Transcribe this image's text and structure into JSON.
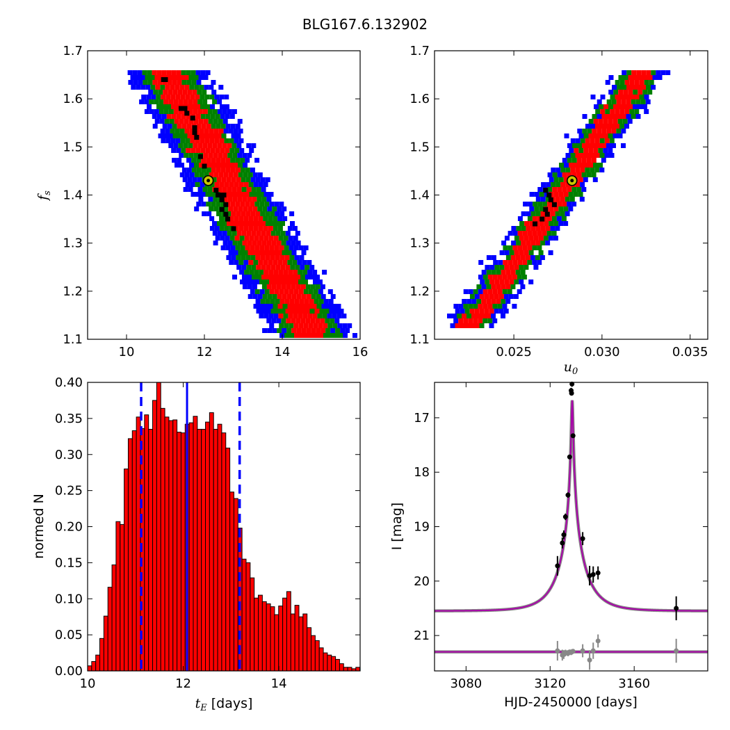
{
  "figure_title": "BLG167.6.132902",
  "chart_data": [
    {
      "type": "heatmap",
      "id": "fs-vs-tE",
      "xlabel": "",
      "ylabel_base": "f",
      "ylabel_sub": "s",
      "xlim": [
        9,
        16
      ],
      "ylim": [
        1.1,
        1.7
      ],
      "xticks": [
        "10",
        "12",
        "14",
        "16"
      ],
      "yticks": [
        "1.1",
        "1.2",
        "1.3",
        "1.4",
        "1.5",
        "1.6",
        "1.7"
      ],
      "grid": false,
      "confidence_colors": [
        "#0000ff",
        "#008000",
        "#ff0000",
        "#000000"
      ],
      "band": {
        "top": {
          "x": 10.95,
          "y": 1.66
        },
        "bottom": {
          "x": 14.75,
          "y": 1.11
        },
        "half_widths_x": [
          1.05,
          0.72,
          0.42
        ]
      },
      "best_fit": {
        "x": 12.1,
        "y": 1.43
      },
      "black_cells": [
        [
          10.95,
          1.64
        ],
        [
          11.0,
          1.64
        ],
        [
          11.4,
          1.58
        ],
        [
          11.5,
          1.58
        ],
        [
          11.55,
          1.57
        ],
        [
          11.7,
          1.56
        ],
        [
          11.75,
          1.54
        ],
        [
          11.75,
          1.53
        ],
        [
          11.8,
          1.52
        ],
        [
          11.9,
          1.48
        ],
        [
          12.0,
          1.46
        ],
        [
          12.3,
          1.41
        ],
        [
          12.35,
          1.4
        ],
        [
          12.4,
          1.4
        ],
        [
          12.45,
          1.39
        ],
        [
          12.5,
          1.4
        ],
        [
          12.55,
          1.38
        ],
        [
          12.45,
          1.37
        ],
        [
          12.55,
          1.36
        ],
        [
          12.6,
          1.35
        ],
        [
          12.75,
          1.33
        ]
      ]
    },
    {
      "type": "heatmap",
      "id": "fs-vs-u0",
      "xlabel_base": "u",
      "xlabel_sub": "0",
      "ylabel": "",
      "xlim": [
        0.0205,
        0.036
      ],
      "ylim": [
        1.1,
        1.7
      ],
      "xticks": [
        "0.025",
        "0.030",
        "0.035"
      ],
      "yticks": [
        "1.1",
        "1.2",
        "1.3",
        "1.4",
        "1.5",
        "1.6",
        "1.7"
      ],
      "grid": false,
      "confidence_colors": [
        "#0000ff",
        "#008000",
        "#ff0000",
        "#000000"
      ],
      "band": {
        "top": {
          "x": 0.0322,
          "y": 1.66
        },
        "bottom": {
          "x": 0.0224,
          "y": 1.13
        },
        "half_widths_x": [
          0.00135,
          0.00095,
          0.0006
        ]
      },
      "best_fit": {
        "x": 0.0283,
        "y": 1.43
      },
      "black_cells": [
        [
          0.0268,
          1.41
        ],
        [
          0.027,
          1.4
        ],
        [
          0.0271,
          1.39
        ],
        [
          0.0273,
          1.38
        ],
        [
          0.0268,
          1.37
        ],
        [
          0.0269,
          1.36
        ],
        [
          0.0266,
          1.35
        ],
        [
          0.0262,
          1.34
        ]
      ]
    },
    {
      "type": "bar",
      "id": "tE-histogram",
      "xlabel_math": "t",
      "xlabel_sub": "E",
      "xlabel_text": " [days]",
      "ylabel": "normed N",
      "xlim": [
        10.0,
        15.7
      ],
      "ylim": [
        0.0,
        0.4
      ],
      "xticks": [
        "10",
        "12",
        "14"
      ],
      "yticks": [
        "0.00",
        "0.05",
        "0.10",
        "0.15",
        "0.20",
        "0.25",
        "0.30",
        "0.35",
        "0.40"
      ],
      "bar_color": "#ff0000",
      "bin_start": 10.0,
      "bin_width": 0.085,
      "values": [
        0.007,
        0.013,
        0.022,
        0.045,
        0.076,
        0.116,
        0.147,
        0.207,
        0.203,
        0.28,
        0.322,
        0.333,
        0.352,
        0.336,
        0.355,
        0.335,
        0.375,
        0.4,
        0.364,
        0.352,
        0.347,
        0.348,
        0.331,
        0.33,
        0.342,
        0.344,
        0.353,
        0.335,
        0.335,
        0.345,
        0.358,
        0.335,
        0.342,
        0.33,
        0.309,
        0.248,
        0.239,
        0.198,
        0.155,
        0.15,
        0.129,
        0.101,
        0.105,
        0.096,
        0.093,
        0.089,
        0.078,
        0.09,
        0.101,
        0.11,
        0.079,
        0.091,
        0.075,
        0.079,
        0.06,
        0.049,
        0.042,
        0.032,
        0.025,
        0.022,
        0.02,
        0.016,
        0.01,
        0.005,
        0.005,
        0.003,
        0.005,
        0.003
      ],
      "median": 12.08,
      "bounds": [
        11.12,
        13.18
      ],
      "line_color": "#0000ff"
    },
    {
      "type": "scatter",
      "id": "lightcurve",
      "xlabel": "HJD-2450000 [days]",
      "ylabel": "I [mag]",
      "xlim": [
        3065,
        3195
      ],
      "ylim": [
        21.65,
        16.35
      ],
      "y_inverted": true,
      "xticks": [
        "3080",
        "3120",
        "3160"
      ],
      "yticks": [
        "17",
        "18",
        "19",
        "20",
        "21"
      ],
      "model_color": "#aa00aa",
      "model": {
        "t0": 3130.5,
        "u0": 0.0283,
        "tE": 12.1,
        "m_base": 20.55
      },
      "residual_offset": 21.3,
      "points": [
        {
          "x": 3123.5,
          "y": 19.72,
          "err": 0.18
        },
        {
          "x": 3125.8,
          "y": 19.3,
          "err": 0.1
        },
        {
          "x": 3126.5,
          "y": 19.15,
          "err": 0.08
        },
        {
          "x": 3127.3,
          "y": 18.82,
          "err": 0.06
        },
        {
          "x": 3128.5,
          "y": 18.42,
          "err": 0.05
        },
        {
          "x": 3129.3,
          "y": 17.72,
          "err": 0.04
        },
        {
          "x": 3130.0,
          "y": 16.5,
          "err": 0.05
        },
        {
          "x": 3130.2,
          "y": 16.55,
          "err": 0.04
        },
        {
          "x": 3130.4,
          "y": 16.38,
          "err": 0.05
        },
        {
          "x": 3130.9,
          "y": 17.33,
          "err": 0.04
        },
        {
          "x": 3135.5,
          "y": 19.22,
          "err": 0.12
        },
        {
          "x": 3138.8,
          "y": 19.9,
          "err": 0.18
        },
        {
          "x": 3140.5,
          "y": 19.88,
          "err": 0.15
        },
        {
          "x": 3142.8,
          "y": 19.85,
          "err": 0.12
        },
        {
          "x": 3180.0,
          "y": 20.5,
          "err": 0.22
        }
      ],
      "residuals": [
        {
          "x": 3123.5,
          "y": 21.28,
          "err": 0.18
        },
        {
          "x": 3125.8,
          "y": 21.36,
          "err": 0.1
        },
        {
          "x": 3126.5,
          "y": 21.35,
          "err": 0.08
        },
        {
          "x": 3127.3,
          "y": 21.32,
          "err": 0.06
        },
        {
          "x": 3128.5,
          "y": 21.33,
          "err": 0.05
        },
        {
          "x": 3129.3,
          "y": 21.3,
          "err": 0.04
        },
        {
          "x": 3130.0,
          "y": 21.31,
          "err": 0.05
        },
        {
          "x": 3130.4,
          "y": 21.3,
          "err": 0.05
        },
        {
          "x": 3130.9,
          "y": 21.29,
          "err": 0.04
        },
        {
          "x": 3135.5,
          "y": 21.28,
          "err": 0.12
        },
        {
          "x": 3138.8,
          "y": 21.45,
          "err": 0.18
        },
        {
          "x": 3140.5,
          "y": 21.28,
          "err": 0.15
        },
        {
          "x": 3142.8,
          "y": 21.1,
          "err": 0.12
        },
        {
          "x": 3180.0,
          "y": 21.28,
          "err": 0.22
        }
      ]
    }
  ]
}
